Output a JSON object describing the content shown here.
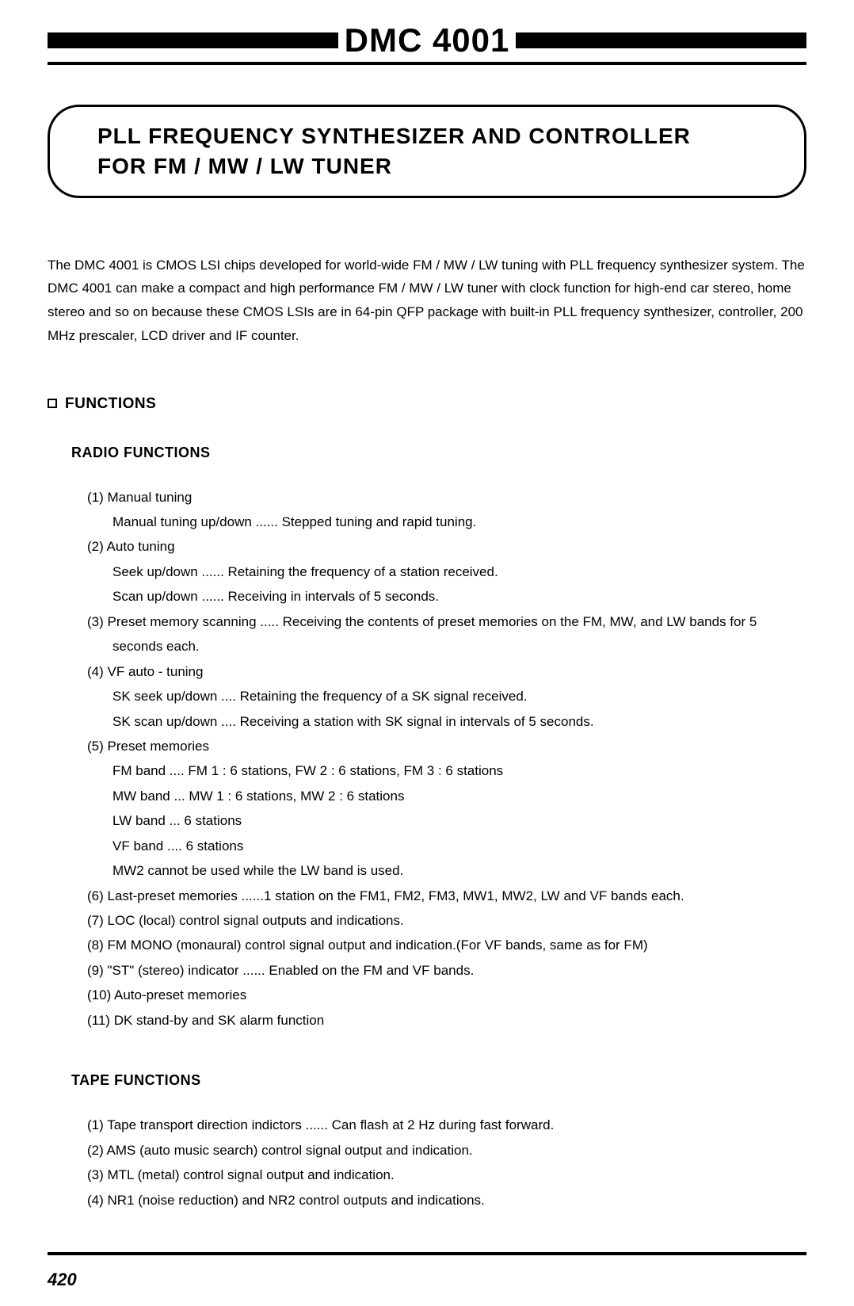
{
  "header": {
    "title": "DMC 4001"
  },
  "capsule": {
    "line1": "PLL FREQUENCY SYNTHESIZER AND CONTROLLER",
    "line2": "FOR FM / MW / LW TUNER"
  },
  "intro": "The DMC 4001 is CMOS LSI chips developed for world-wide FM / MW / LW tuning with PLL frequency synthesizer system. The DMC 4001 can make a compact and high performance FM / MW / LW tuner with clock function for high-end car stereo, home stereo and so on because these CMOS LSIs are in 64-pin QFP package with built-in PLL frequency synthesizer, controller, 200 MHz prescaler, LCD driver and IF counter.",
  "section": {
    "functions_label": "FUNCTIONS",
    "radio_label": "RADIO FUNCTIONS",
    "tape_label": "TAPE FUNCTIONS"
  },
  "radio": {
    "i1_a": "(1) Manual tuning",
    "i1_b": "Manual tuning up/down ...... Stepped tuning and rapid tuning.",
    "i2_a": "(2) Auto tuning",
    "i2_b": "Seek up/down ...... Retaining the frequency of a station received.",
    "i2_c": "Scan up/down ...... Receiving in intervals of 5 seconds.",
    "i3_a": "(3) Preset memory scanning ..... Receiving the contents of preset memories on the FM, MW, and LW bands for 5",
    "i3_b": "seconds each.",
    "i4_a": "(4) VF auto - tuning",
    "i4_b": "SK seek up/down .... Retaining the frequency of a SK signal received.",
    "i4_c": "SK scan up/down .... Receiving a station with SK signal in intervals of 5 seconds.",
    "i5_a": "(5) Preset memories",
    "i5_b": "FM band .... FM 1 : 6 stations, FW 2 : 6 stations, FM 3 : 6 stations",
    "i5_c": "MW band ... MW 1 : 6 stations, MW 2 : 6 stations",
    "i5_d": "LW band ... 6 stations",
    "i5_e": "VF band .... 6 stations",
    "i5_f": "MW2 cannot be used while the LW band is used.",
    "i6": "(6) Last-preset memories ......1 station on the FM1, FM2, FM3, MW1, MW2, LW and VF bands each.",
    "i7": "(7) LOC (local) control signal outputs and indications.",
    "i8": "(8) FM MONO (monaural) control signal output and indication.(For VF bands, same as for FM)",
    "i9": "(9) \"ST\" (stereo) indicator ...... Enabled on the FM and VF bands.",
    "i10": "(10) Auto-preset memories",
    "i11": "(11) DK stand-by and SK alarm function"
  },
  "tape": {
    "i1": "(1) Tape transport direction indictors ...... Can flash at 2 Hz during fast forward.",
    "i2": "(2) AMS (auto music search) control signal output and indication.",
    "i3": "(3) MTL (metal) control signal output and indication.",
    "i4": "(4) NR1 (noise reduction) and NR2 control outputs and indications."
  },
  "page_number": "420"
}
